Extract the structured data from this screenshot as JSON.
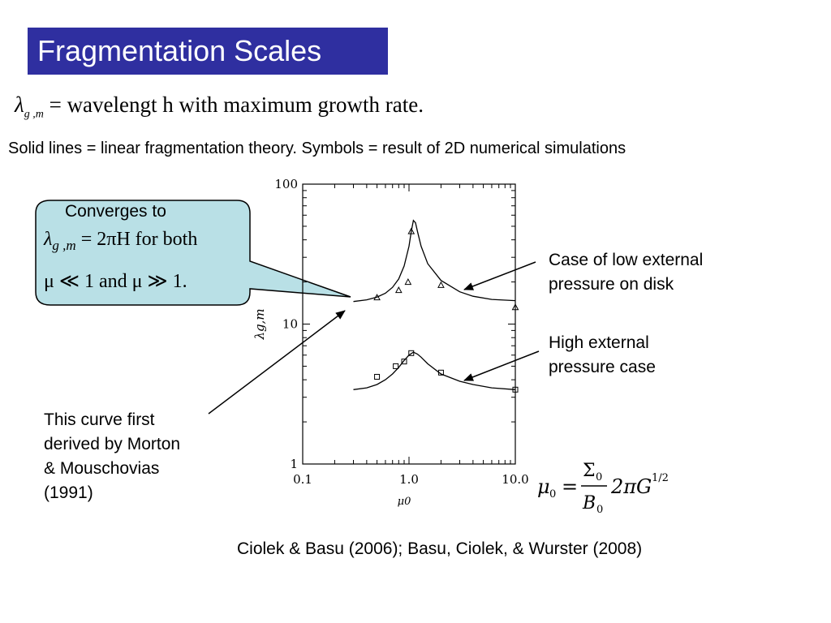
{
  "title": "Fragmentation Scales",
  "definition": {
    "symbol": "λ",
    "subscript": "g ,m",
    "equals": "=",
    "text": "wavelengt h with  maximum growth rate."
  },
  "subtitle": "Solid lines = linear fragmentation theory. Symbols = result of 2D numerical simulations",
  "callout": {
    "heading": "Converges to",
    "eq1_lambda": "λ",
    "eq1_sub": "g ,m",
    "eq1_rhs": "= 2πH  for both",
    "eq2": "μ ≪ 1 and μ ≫ 1."
  },
  "annotations": {
    "low_pressure_line1": "Case of low external",
    "low_pressure_line2": "pressure on disk",
    "high_pressure_line1": "High external",
    "high_pressure_line2": "pressure case",
    "morton_line1": "This curve first",
    "morton_line2": "derived by Morton",
    "morton_line3": "& Mouschovias",
    "morton_line4": "(1991)"
  },
  "mu_equation": {
    "lhs": "μ",
    "lhs_sub": "0",
    "equals": "=",
    "numerator": "Σ",
    "numerator_sub": "0",
    "denominator": "B",
    "denominator_sub": "0",
    "factor": "2πG",
    "factor_sup": "1/2"
  },
  "citation": "Ciolek & Basu (2006); Basu, Ciolek, & Wurster (2008)",
  "colors": {
    "title_bg": "#2f2fa0",
    "title_fg": "#ffffff",
    "callout_bg": "#b9e0e6",
    "callout_border": "#000000"
  },
  "chart_data": {
    "type": "line",
    "xscale": "log",
    "yscale": "log",
    "xlim": [
      0.1,
      10.0
    ],
    "ylim": [
      1,
      100
    ],
    "x_ticks": [
      "0.1",
      "1.0",
      "10.0"
    ],
    "y_ticks": [
      "1",
      "10",
      "100"
    ],
    "xlabel": "μ0",
    "ylabel": "λg,m",
    "series": [
      {
        "kind": "line",
        "x": [
          0.3,
          0.4,
          0.5,
          0.6,
          0.7,
          0.8,
          0.9,
          1.0,
          1.05,
          1.1,
          1.15,
          1.2,
          1.3,
          1.5,
          2.0,
          3.0,
          4.0,
          6.0,
          10.0
        ],
        "y": [
          14.5,
          14.9,
          15.6,
          16.6,
          18.3,
          21.0,
          26.0,
          36.0,
          46.0,
          55.0,
          53.0,
          46.0,
          36.0,
          27.0,
          20.5,
          17.0,
          15.8,
          15.0,
          14.7
        ]
      },
      {
        "kind": "markers",
        "marker": "triangle",
        "x": [
          0.5,
          0.8,
          0.98,
          1.05,
          2.0,
          10.0
        ],
        "y": [
          15.5,
          17.5,
          20.0,
          46.0,
          19.0,
          13.2
        ]
      },
      {
        "kind": "line",
        "x": [
          0.3,
          0.4,
          0.5,
          0.6,
          0.7,
          0.8,
          0.9,
          1.0,
          1.1,
          1.2,
          1.3,
          1.5,
          2.0,
          3.0,
          4.0,
          6.0,
          10.0
        ],
        "y": [
          3.4,
          3.5,
          3.7,
          4.0,
          4.4,
          4.9,
          5.5,
          6.0,
          6.3,
          6.1,
          5.8,
          5.2,
          4.4,
          3.9,
          3.7,
          3.5,
          3.4
        ]
      },
      {
        "kind": "markers",
        "marker": "square",
        "x": [
          0.5,
          0.75,
          0.9,
          1.05,
          2.0,
          10.0
        ],
        "y": [
          4.2,
          5.0,
          5.4,
          6.2,
          4.5,
          3.4
        ]
      }
    ]
  }
}
